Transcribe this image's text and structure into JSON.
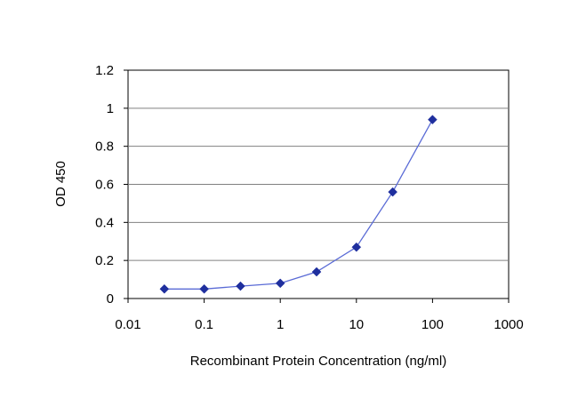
{
  "chart_data": {
    "type": "line",
    "title": "",
    "xlabel": "Recombinant Protein Concentration (ng/ml)",
    "ylabel": "OD 450",
    "xscale": "log",
    "xlim": [
      0.01,
      1000
    ],
    "ylim": [
      0,
      1.2
    ],
    "x_ticks": [
      "0.01",
      "0.1",
      "1",
      "10",
      "100",
      "1000"
    ],
    "y_ticks": [
      "0",
      "0.2",
      "0.4",
      "0.6",
      "0.8",
      "1",
      "1.2"
    ],
    "grid": "horizontal",
    "legend": "none",
    "series": [
      {
        "color": "#1f2f9e",
        "x": [
          0.03,
          0.1,
          0.3,
          1,
          3,
          10,
          30,
          100
        ],
        "y": [
          0.05,
          0.05,
          0.065,
          0.08,
          0.14,
          0.27,
          0.56,
          0.94
        ]
      }
    ]
  }
}
